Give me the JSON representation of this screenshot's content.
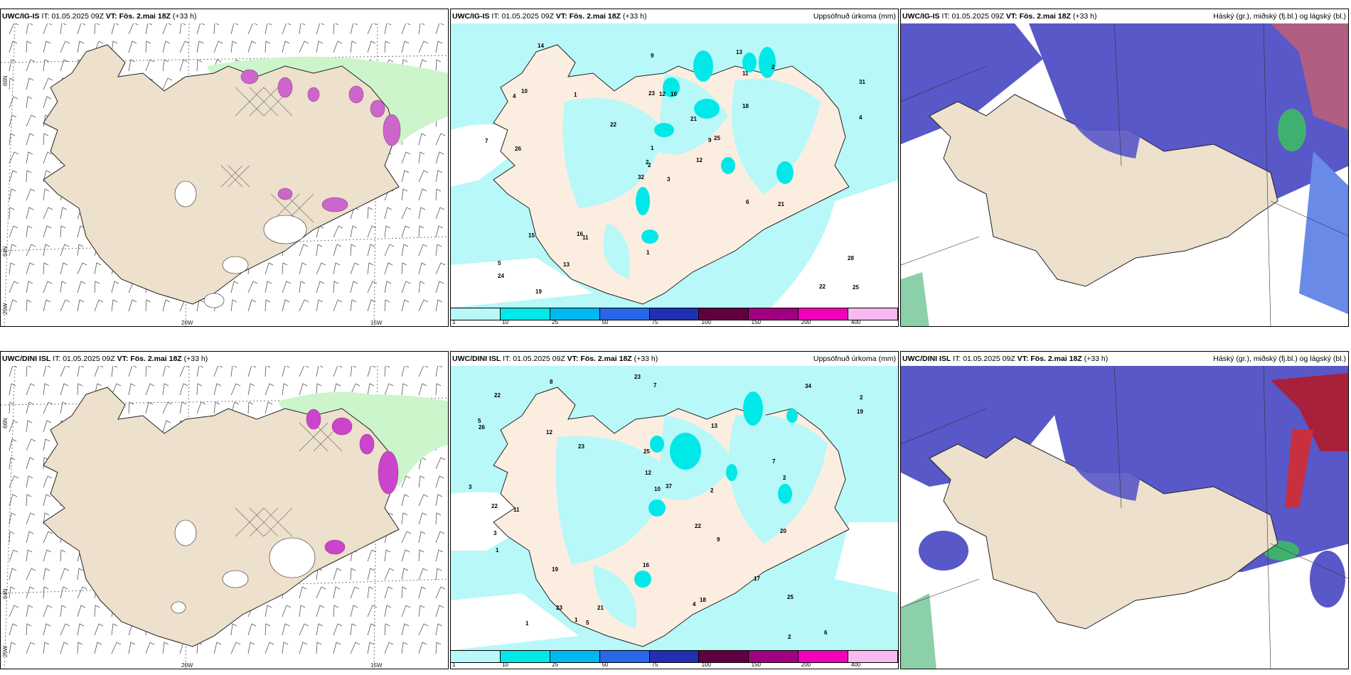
{
  "panels": {
    "p1": {
      "model": "UWC/IG-IS",
      "it_label": "IT:",
      "it": "01.05.2025 09Z",
      "vt_label": "VT:",
      "vt": "Fös. 2.mai 18Z",
      "lead": "(+33 h)",
      "right": ""
    },
    "p2": {
      "model": "UWC/IG-IS",
      "it_label": "IT:",
      "it": "01.05.2025 09Z",
      "vt_label": "VT:",
      "vt": "Fös. 2.mai 18Z",
      "lead": "(+33 h)",
      "right": "Uppsöfnuð úrkoma (mm)"
    },
    "p3": {
      "model": "UWC/IG-IS",
      "it_label": "IT:",
      "it": "01.05.2025 09Z",
      "vt_label": "VT:",
      "vt": "Fös. 2.mai 18Z",
      "lead": "(+33 h)",
      "right": "Háský (gr.), miðský (fj.bl.) og lágský (bl.)"
    },
    "p4": {
      "model": "UWC/DINI ISL",
      "it_label": "IT:",
      "it": "01.05.2025 09Z",
      "vt_label": "VT:",
      "vt": "Fös. 2.mai 18Z",
      "lead": "(+33 h)",
      "right": ""
    },
    "p5": {
      "model": "UWC/DINI ISL",
      "it_label": "IT:",
      "it": "01.05.2025 09Z",
      "vt_label": "VT:",
      "vt": "Fös. 2.mai 18Z",
      "lead": "(+33 h)",
      "right": "Uppsöfnuð úrkoma (mm)"
    },
    "p6": {
      "model": "UWC/DINI ISL",
      "it_label": "IT:",
      "it": "01.05.2025 09Z",
      "vt_label": "VT:",
      "vt": "Fös. 2.mai 18Z",
      "lead": "(+33 h)",
      "right": "Háský (gr.), miðský (fj.bl.) og lágský (bl.)"
    }
  },
  "axes": {
    "lat66": "66N",
    "lat64": "64N",
    "lat25": "25W",
    "lon20": "20W",
    "lon15": "15W"
  },
  "colorbar": {
    "ticks": [
      "1",
      "10",
      "25",
      "50",
      "75",
      "100",
      "150",
      "200",
      "400"
    ],
    "colors": [
      "#b8f8f8",
      "#00e8e8",
      "#00b8f0",
      "#2868e8",
      "#2030b0",
      "#600040",
      "#a00080",
      "#f000b8",
      "#f8b8f0"
    ]
  },
  "precip_top": [
    "3",
    "4",
    "2",
    "5",
    "9",
    "11",
    "13",
    "10",
    "11",
    "12",
    "14",
    "25",
    "26",
    "31",
    "32",
    "18",
    "19",
    "23",
    "21",
    "15",
    "22",
    "24",
    "13",
    "12",
    "25",
    "21",
    "10",
    "9",
    "7",
    "6",
    "4",
    "2",
    "1",
    "1",
    "1",
    "2",
    "16",
    "22",
    "28"
  ],
  "precip_bottom": [
    "3",
    "7",
    "7",
    "2",
    "5",
    "6",
    "11",
    "13",
    "25",
    "34",
    "37",
    "20",
    "23",
    "26",
    "12",
    "19",
    "18",
    "22",
    "22",
    "16",
    "17",
    "25",
    "19",
    "12",
    "23",
    "10",
    "9",
    "8",
    "5",
    "4",
    "3",
    "2",
    "2",
    "1",
    "1",
    "1",
    "2",
    "22",
    "21",
    "23"
  ],
  "colors": {
    "land": "#ede0cc",
    "greenarea": "#ccf5cc",
    "precip_bg": "#b8f8f8",
    "precip_mid": "#00e8e8",
    "cloud_mid": "#5858c8",
    "cloud_low": "#6a8ae8"
  }
}
